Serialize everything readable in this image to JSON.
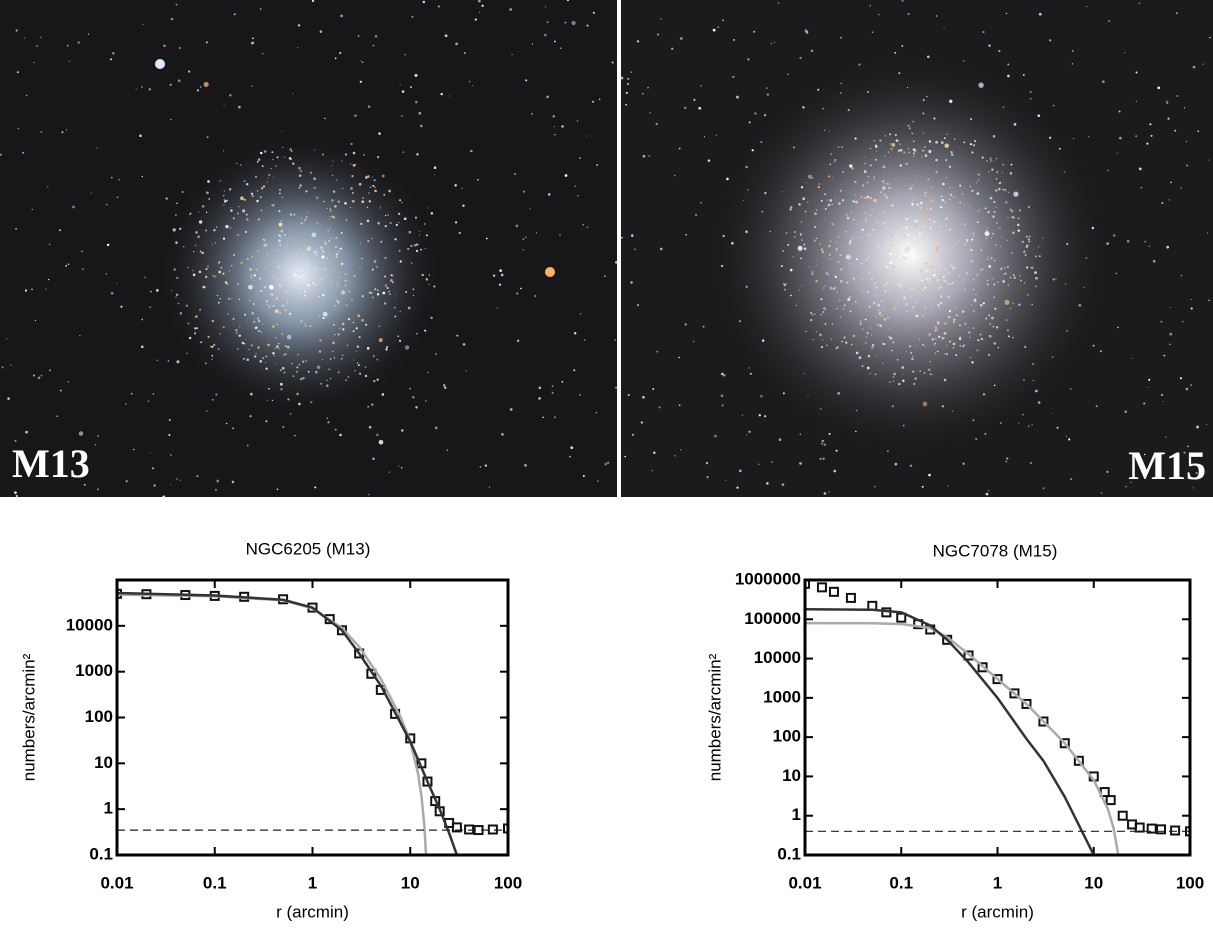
{
  "images": [
    {
      "label": "M13"
    },
    {
      "label": "M15"
    }
  ],
  "chart_data": [
    {
      "type": "scatter",
      "title": "NGC6205 (M13)",
      "xlabel": "r (arcmin)",
      "ylabel": "numbers/arcmin²",
      "xlog": true,
      "ylog": true,
      "xlim": [
        0.01,
        100
      ],
      "ylim": [
        0.1,
        100000
      ],
      "xticks": [
        0.01,
        0.1,
        1,
        10,
        100
      ],
      "yticks": [
        0.1,
        1,
        10,
        100,
        1000,
        10000
      ],
      "series": [
        {
          "mode": "markers",
          "color": "#111111",
          "x": [
            0.01,
            0.02,
            0.05,
            0.1,
            0.2,
            0.5,
            1,
            1.5,
            2,
            3,
            4,
            5,
            7,
            10,
            13,
            15,
            18,
            20,
            25,
            30,
            40,
            50,
            70,
            100
          ],
          "values": [
            50000,
            49000,
            47000,
            45000,
            43000,
            38000,
            25000,
            14000,
            8000,
            2500,
            900,
            400,
            120,
            35,
            10,
            4,
            1.5,
            0.9,
            0.5,
            0.4,
            0.36,
            0.35,
            0.36,
            0.38
          ]
        },
        {
          "mode": "line",
          "color": "#aaaaaa",
          "x": [
            0.01,
            0.1,
            0.5,
            1,
            2,
            3,
            5,
            8,
            10,
            12,
            13,
            14,
            14.5
          ],
          "values": [
            48000,
            44000,
            36000,
            24000,
            9000,
            3500,
            700,
            100,
            30,
            6,
            2,
            0.4,
            0.1
          ]
        },
        {
          "mode": "line",
          "color": "#333333",
          "x": [
            0.01,
            0.1,
            0.5,
            1,
            2,
            3,
            5,
            10,
            15,
            20,
            25,
            30
          ],
          "values": [
            52000,
            46000,
            37000,
            25000,
            8000,
            2500,
            500,
            30,
            4,
            1,
            0.3,
            0.1
          ]
        },
        {
          "mode": "dashed",
          "color": "#222222",
          "x": [
            0.01,
            100
          ],
          "values": [
            0.35,
            0.35
          ]
        }
      ]
    },
    {
      "type": "scatter",
      "title": "NGC7078 (M15)",
      "xlabel": "r (arcmin)",
      "ylabel": "numbers/arcmin²",
      "xlog": true,
      "ylog": true,
      "xlim": [
        0.01,
        100
      ],
      "ylim": [
        0.1,
        1000000
      ],
      "xticks": [
        0.01,
        0.1,
        1,
        10,
        100
      ],
      "yticks": [
        0.1,
        1,
        10,
        100,
        1000,
        10000,
        100000,
        1000000
      ],
      "series": [
        {
          "mode": "markers",
          "color": "#111111",
          "x": [
            0.01,
            0.015,
            0.02,
            0.03,
            0.05,
            0.07,
            0.1,
            0.15,
            0.2,
            0.3,
            0.5,
            0.7,
            1,
            1.5,
            2,
            3,
            5,
            7,
            10,
            13,
            15,
            20,
            25,
            30,
            40,
            50,
            70,
            100
          ],
          "values": [
            800000,
            650000,
            500000,
            350000,
            220000,
            150000,
            110000,
            75000,
            55000,
            30000,
            12000,
            6000,
            3000,
            1300,
            700,
            250,
            70,
            25,
            10,
            4,
            2.5,
            1,
            0.6,
            0.5,
            0.47,
            0.45,
            0.42,
            0.4
          ]
        },
        {
          "mode": "line",
          "color": "#aaaaaa",
          "x": [
            0.01,
            0.05,
            0.1,
            0.2,
            0.3,
            0.5,
            1,
            2,
            5,
            10,
            14,
            16,
            18
          ],
          "values": [
            80000,
            79000,
            76000,
            60000,
            35000,
            13000,
            3000,
            700,
            70,
            8,
            1.5,
            0.5,
            0.1
          ]
        },
        {
          "mode": "line",
          "color": "#333333",
          "x": [
            0.01,
            0.05,
            0.1,
            0.2,
            0.3,
            0.5,
            1,
            2,
            3,
            5,
            10
          ],
          "values": [
            180000,
            175000,
            150000,
            70000,
            30000,
            8000,
            1000,
            90,
            25,
            3,
            0.1
          ]
        },
        {
          "mode": "dashed",
          "color": "#222222",
          "x": [
            0.01,
            100
          ],
          "values": [
            0.4,
            0.4
          ]
        }
      ]
    }
  ]
}
